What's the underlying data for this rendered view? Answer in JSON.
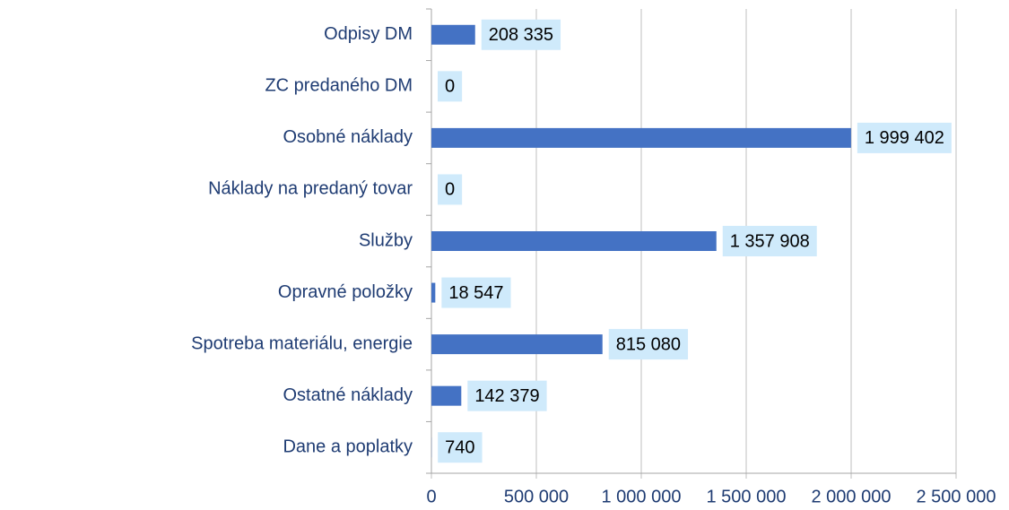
{
  "chart_data": {
    "type": "bar",
    "orientation": "horizontal",
    "categories": [
      "Odpisy DM",
      "ZC predaného DM",
      "Osobné náklady",
      "Náklady na predaný tovar",
      "Služby",
      "Opravné položky",
      "Spotreba materiálu, energie",
      "Ostatné náklady",
      "Dane a poplatky"
    ],
    "values": [
      208335,
      0,
      1999402,
      0,
      1357908,
      18547,
      815080,
      142379,
      740
    ],
    "value_labels": [
      "208 335",
      "0",
      "1 999 402",
      "0",
      "1 357 908",
      "18 547",
      "815 080",
      "142 379",
      "740"
    ],
    "color": "#4472c4",
    "xlim": [
      0,
      2500000
    ],
    "xticks": [
      0,
      {
        "value": 500000,
        "label": "500 000"
      },
      {
        "value": 1000000,
        "label": "1 000 000"
      },
      {
        "value": 1500000,
        "label": "1 500 000"
      },
      {
        "value": 2000000,
        "label": "2 000 000"
      },
      {
        "value": 2500000,
        "label": "2 500 000"
      }
    ],
    "grid": true
  }
}
